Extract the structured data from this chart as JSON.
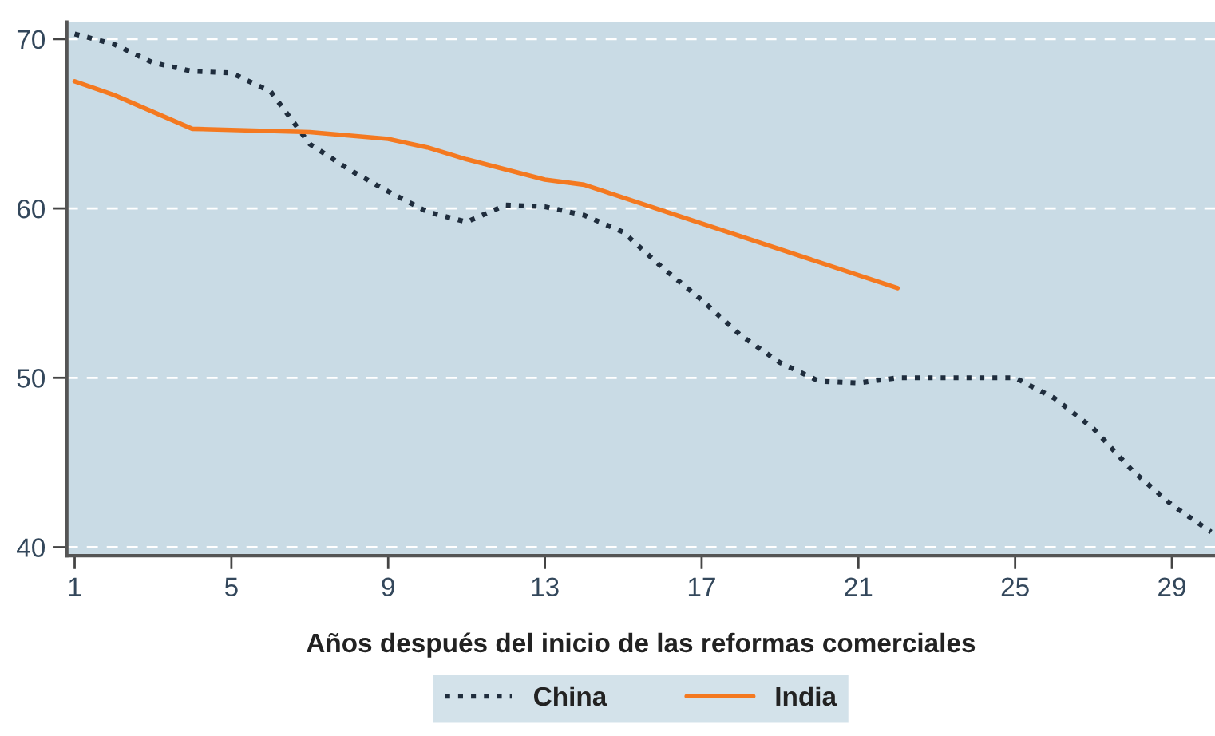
{
  "chart_data": {
    "type": "line",
    "xlabel": "Años después del inicio de las reformas comerciales",
    "xlim": [
      0.8,
      30.1
    ],
    "xticks": [
      1,
      5,
      9,
      13,
      17,
      21,
      25,
      29
    ],
    "ylim": [
      39.5,
      71
    ],
    "yticks": [
      40,
      50,
      60,
      70
    ],
    "grid": "y",
    "legend": "bottom",
    "series": [
      {
        "name": "China",
        "color": "#1f2d3d",
        "line_style": "dotted",
        "x": [
          1,
          2,
          3,
          4,
          5,
          6,
          7,
          8,
          9,
          10,
          11,
          12,
          13,
          14,
          15,
          16,
          17,
          18,
          19,
          20,
          21,
          22,
          23,
          24,
          25,
          26,
          27,
          28,
          29,
          30
        ],
        "values": [
          70.3,
          69.7,
          68.6,
          68.1,
          68.0,
          66.9,
          63.8,
          62.3,
          61.0,
          59.8,
          59.2,
          60.2,
          60.1,
          59.6,
          58.6,
          56.5,
          54.6,
          52.5,
          50.9,
          49.8,
          49.7,
          50.0,
          50.0,
          50.0,
          50.0,
          48.8,
          47.0,
          44.5,
          42.5,
          40.9
        ]
      },
      {
        "name": "India",
        "color": "#f47920",
        "line_style": "solid",
        "x": [
          1,
          2,
          4,
          7,
          9,
          10,
          11,
          12,
          13,
          14,
          22
        ],
        "values": [
          67.5,
          66.7,
          64.7,
          64.5,
          64.1,
          63.6,
          62.9,
          62.3,
          61.7,
          61.4,
          55.3
        ]
      }
    ]
  }
}
